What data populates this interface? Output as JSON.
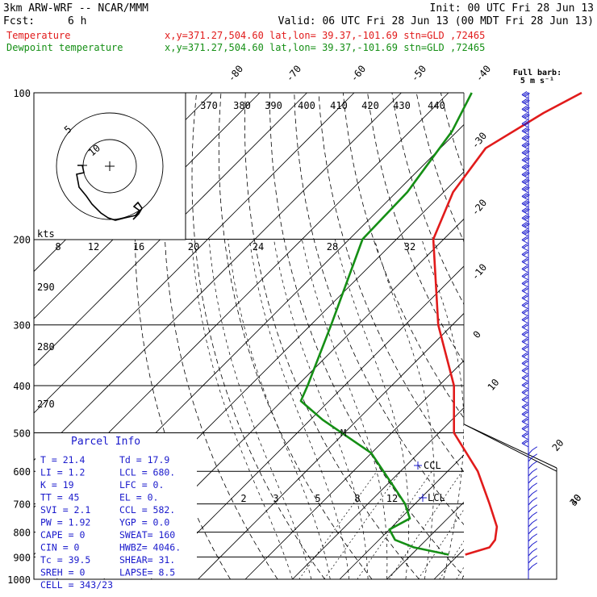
{
  "header": {
    "line1_left": "3km ARW-WRF -- NCAR/MMM",
    "line1_right": "Init: 00 UTC Fri 28 Jun 13",
    "line2_left_label": "Fcst:",
    "line2_left_value": "6 h",
    "line2_right": "Valid: 06 UTC Fri 28 Jun 13 (00 MDT Fri 28 Jun 13)",
    "temp_label": "Temperature",
    "temp_loc": "x,y=371.27,504.60   lat,lon= 39.37,-101.69  stn=GLD ,72465",
    "dew_label": "Dewpoint temperature",
    "dew_loc": "x,y=371.27,504.60   lat,lon= 39.37,-101.69  stn=GLD ,72465"
  },
  "barb_legend": {
    "line1": "Full barb:",
    "line2": "5 m s⁻¹"
  },
  "pressure_levels": [
    100,
    200,
    300,
    400,
    500,
    600,
    700,
    800,
    900,
    1000
  ],
  "isotherm_labels_top": [
    "-80",
    "-70",
    "-60",
    "-50",
    "-40"
  ],
  "isotherm_labels_right": [
    "-30",
    "-20",
    "-10",
    "0",
    "10",
    "20",
    "30",
    "40"
  ],
  "theta_labels": [
    "370",
    "380",
    "390",
    "400",
    "410",
    "420",
    "430",
    "440"
  ],
  "theta_labels_left": [
    "290",
    "280",
    "270"
  ],
  "mixing_ratio_labels": [
    "8",
    "12",
    "16",
    "20",
    "24",
    "28",
    "32"
  ],
  "hodograph": {
    "units": "kts",
    "ring_labels": [
      "5",
      "10"
    ]
  },
  "markers": {
    "ccl": "CCL",
    "lcl": "LCL",
    "m": "M"
  },
  "lower_labels": [
    "2",
    "3",
    "5",
    "8",
    "12"
  ],
  "parcel_info": {
    "title": "Parcel Info",
    "rows": [
      [
        "T   =   21.4",
        "Td  =  17.9"
      ],
      [
        "LI  =    1.2",
        "LCL =  680."
      ],
      [
        "K   =     19",
        "LFC =     0."
      ],
      [
        "TT  =     45",
        "EL  =     0."
      ],
      [
        "SVI =    2.1",
        "CCL =  582."
      ],
      [
        "PW  =   1.92",
        "YGP =   0.0"
      ],
      [
        "CAPE =     0",
        "SWEAT=  160"
      ],
      [
        "CIN  =     0",
        "HWBZ= 4046."
      ],
      [
        "Tc  =   39.5",
        "SHEAR=  31."
      ],
      [
        "SREH =     0",
        "LAPSE=  8.5"
      ],
      [
        "CELL = 343/23",
        ""
      ]
    ]
  },
  "chart_data": {
    "type": "line",
    "title": "",
    "xlabel": "",
    "ylabel": "",
    "y_scale": "log",
    "ylim": [
      1000,
      100
    ],
    "series": [
      {
        "name": "Temperature",
        "color": "#e11b1b",
        "points": [
          [
            890,
            21.4
          ],
          [
            860,
            25.0
          ],
          [
            830,
            24.6
          ],
          [
            780,
            22.2
          ],
          [
            700,
            15.8
          ],
          [
            600,
            6.4
          ],
          [
            500,
            -6.8
          ],
          [
            400,
            -16.8
          ],
          [
            300,
            -33.0
          ],
          [
            200,
            -52.2
          ],
          [
            160,
            -58.0
          ],
          [
            130,
            -60.4
          ],
          [
            110,
            -55.6
          ],
          [
            100,
            -51.8
          ]
        ]
      },
      {
        "name": "Dewpoint temperature",
        "color": "#158f15",
        "points": [
          [
            890,
            17.9
          ],
          [
            860,
            9.0
          ],
          [
            830,
            3.4
          ],
          [
            790,
            0.0
          ],
          [
            750,
            2.0
          ],
          [
            700,
            -2.1
          ],
          [
            650,
            -7.6
          ],
          [
            550,
            -20.1
          ],
          [
            470,
            -37.4
          ],
          [
            430,
            -46.0
          ],
          [
            400,
            -47.8
          ],
          [
            300,
            -55.7
          ],
          [
            200,
            -67.2
          ],
          [
            160,
            -67.7
          ],
          [
            120,
            -71.1
          ],
          [
            100,
            -75.1
          ]
        ]
      }
    ]
  },
  "colors": {
    "temperature": "#e11b1b",
    "dewpoint": "#158f15",
    "parcel": "#1a1acc",
    "barbs": "#1a1acc"
  }
}
